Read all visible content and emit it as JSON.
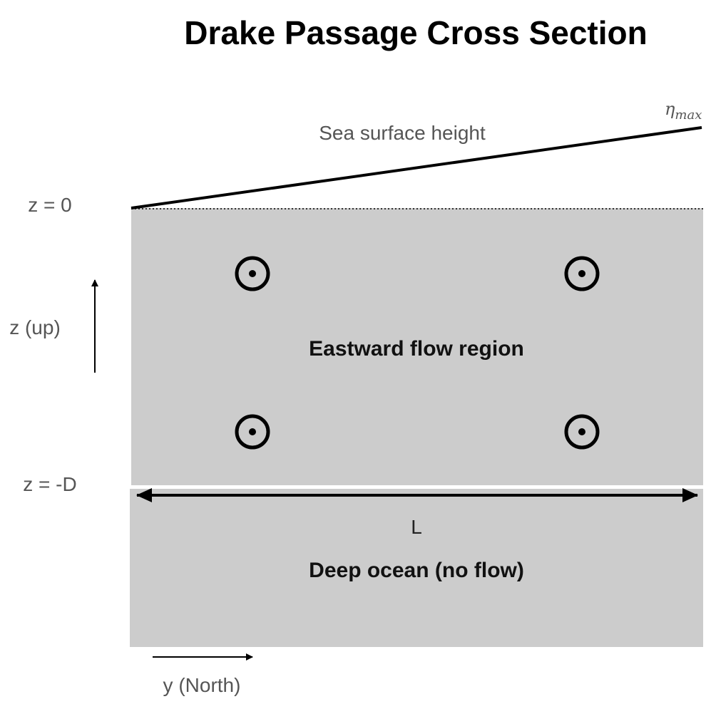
{
  "title": "Drake Passage Cross Section",
  "labels": {
    "sea_surface_height": "Sea surface height",
    "eta_symbol": "η",
    "eta_subscript": "max",
    "z_top": "z = 0",
    "z_bottom": "z = -D",
    "z_axis": "z (up)",
    "y_axis": "y (North)",
    "width": "L",
    "upper_region": "Eastward flow region",
    "lower_region": "Deep ocean (no flow)"
  },
  "colors": {
    "region_fill": "#cccccc",
    "line": "#000000",
    "label_gray": "#555555"
  },
  "flow_markers": [
    {
      "symbol": "out-of-page-icon",
      "meaning": "eastward flow"
    },
    {
      "symbol": "out-of-page-icon",
      "meaning": "eastward flow"
    },
    {
      "symbol": "out-of-page-icon",
      "meaning": "eastward flow"
    },
    {
      "symbol": "out-of-page-icon",
      "meaning": "eastward flow"
    }
  ]
}
